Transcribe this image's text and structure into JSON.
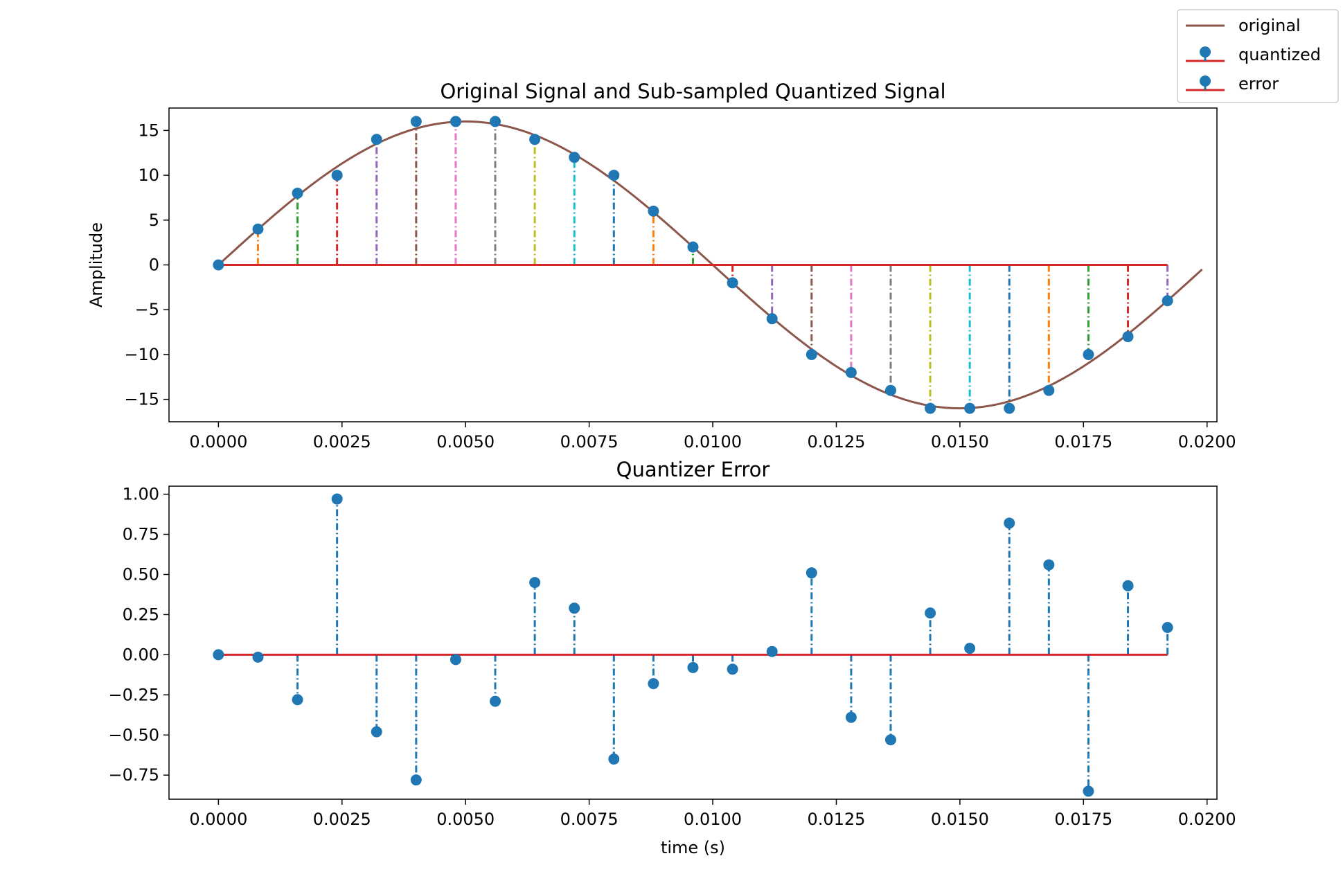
{
  "legend": {
    "entries": [
      {
        "label": "original",
        "kind": "line",
        "color": "#8c564b"
      },
      {
        "label": "quantized",
        "kind": "stem",
        "color": "#1f77b4",
        "baseline_color": "#d62728"
      },
      {
        "label": "error",
        "kind": "stem",
        "color": "#1f77b4",
        "baseline_color": "#d62728"
      }
    ]
  },
  "colors": {
    "original": "#8c564b",
    "marker": "#1f77b4",
    "baseline": "#d62728",
    "stem_cycle": [
      "#1f77b4",
      "#ff7f0e",
      "#2ca02c",
      "#d62728",
      "#9467bd",
      "#8c564b",
      "#e377c2",
      "#7f7f7f",
      "#bcbd22",
      "#17becf"
    ]
  },
  "chart_data": [
    {
      "type": "line+stem",
      "title": "Original Signal and Sub-sampled Quantized Signal",
      "xlabel": "",
      "ylabel": "Amplitude",
      "xlim": [
        -0.001,
        0.0202
      ],
      "ylim": [
        -17.5,
        17.5
      ],
      "xticks": [
        0.0,
        0.0025,
        0.005,
        0.0075,
        0.01,
        0.0125,
        0.015,
        0.0175,
        0.02
      ],
      "xtick_labels": [
        "0.0000",
        "0.0025",
        "0.0050",
        "0.0075",
        "0.0100",
        "0.0125",
        "0.0150",
        "0.0175",
        "0.0200"
      ],
      "yticks": [
        15,
        10,
        5,
        0,
        -5,
        -10,
        -15
      ],
      "ytick_labels": [
        "15",
        "10",
        "5",
        "0",
        "−10",
        "−15"
      ],
      "ytick_labels_full": [
        "15",
        "10",
        "5",
        "0",
        "−5",
        "−10",
        "−15"
      ],
      "original": {
        "name": "original",
        "amplitude": 16,
        "frequency_hz": 50,
        "x_range": [
          0.0,
          0.0199
        ]
      },
      "quantized": {
        "name": "quantized",
        "x": [
          0.0,
          0.0008,
          0.0016,
          0.0024,
          0.0032,
          0.004,
          0.0048,
          0.0056,
          0.0064,
          0.0072,
          0.008,
          0.0088,
          0.0096,
          0.0104,
          0.0112,
          0.012,
          0.0128,
          0.0136,
          0.0144,
          0.0152,
          0.016,
          0.0168,
          0.0176,
          0.0184,
          0.0192
        ],
        "y": [
          0,
          4,
          8,
          10,
          14,
          16,
          16,
          16,
          14,
          12,
          10,
          6,
          2,
          -2,
          -6,
          -10,
          -12,
          -14,
          -16,
          -16,
          -16,
          -14,
          -10,
          -8,
          -4
        ]
      }
    },
    {
      "type": "stem",
      "title": "Quantizer Error",
      "xlabel": "time (s)",
      "ylabel": "",
      "xlim": [
        -0.001,
        0.0202
      ],
      "ylim": [
        -0.9,
        1.05
      ],
      "xticks": [
        0.0,
        0.0025,
        0.005,
        0.0075,
        0.01,
        0.0125,
        0.015,
        0.0175,
        0.02
      ],
      "xtick_labels": [
        "0.0000",
        "0.0025",
        "0.0050",
        "0.0075",
        "0.0100",
        "0.0125",
        "0.0150",
        "0.0175",
        "0.0200"
      ],
      "yticks": [
        1.0,
        0.75,
        0.5,
        0.25,
        0.0,
        -0.25,
        -0.5,
        -0.75
      ],
      "ytick_labels": [
        "1.00",
        "0.75",
        "0.50",
        "0.25",
        "0.00",
        "−0.25",
        "−0.50",
        "−0.75"
      ],
      "error": {
        "name": "error",
        "x": [
          0.0,
          0.0008,
          0.0016,
          0.0024,
          0.0032,
          0.004,
          0.0048,
          0.0056,
          0.0064,
          0.0072,
          0.008,
          0.0088,
          0.0096,
          0.0104,
          0.0112,
          0.012,
          0.0128,
          0.0136,
          0.0144,
          0.0152,
          0.016,
          0.0168,
          0.0176,
          0.0184,
          0.0192
        ],
        "y": [
          0.0,
          -0.015,
          -0.28,
          0.97,
          -0.48,
          -0.78,
          -0.03,
          -0.29,
          0.45,
          0.29,
          -0.65,
          -0.18,
          -0.08,
          -0.09,
          0.02,
          0.51,
          -0.39,
          -0.53,
          0.26,
          0.04,
          0.82,
          0.56,
          -0.85,
          0.43,
          0.17
        ]
      }
    }
  ]
}
